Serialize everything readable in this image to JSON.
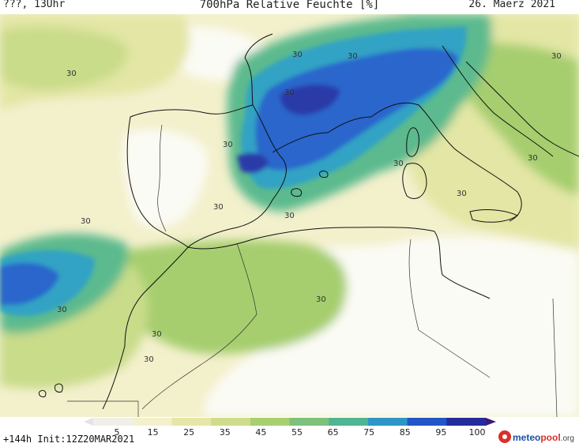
{
  "header": {
    "left": "???, 13Uhr",
    "title": "700hPa Relative Feuchte [%]",
    "date": "26. Maerz 2021"
  },
  "footer": {
    "init": "+144h  Init:12Z20MAR2021",
    "logo_main": "meteo",
    "logo_accent": "pool",
    "logo_suffix": ".org"
  },
  "colorbar": {
    "labels": [
      "5",
      "15",
      "25",
      "35",
      "45",
      "55",
      "65",
      "75",
      "85",
      "95",
      "100"
    ],
    "colors": [
      "#f0f0ea",
      "#f3f0cc",
      "#e6e6a8",
      "#cfdc8c",
      "#a9cf70",
      "#7cc27a",
      "#4fb592",
      "#2e96c6",
      "#2255c8",
      "#232c9a",
      "#3a1a7a"
    ]
  },
  "contour_labels": [
    "30",
    "30",
    "30",
    "30",
    "30",
    "30",
    "30",
    "30",
    "30",
    "30",
    "30",
    "30",
    "30",
    "30",
    "30",
    "30"
  ],
  "palette": {
    "land_light": "#f3f0cc",
    "pale": "#fbfbf5",
    "yellow_green": "#e3e6a4",
    "light_green": "#c9dc8a",
    "green": "#a6ce6e",
    "teal": "#5cba8e",
    "cyan": "#30a3c4",
    "blue": "#2a66cc",
    "dark_blue": "#2a3aa8",
    "coast": "#111111"
  }
}
